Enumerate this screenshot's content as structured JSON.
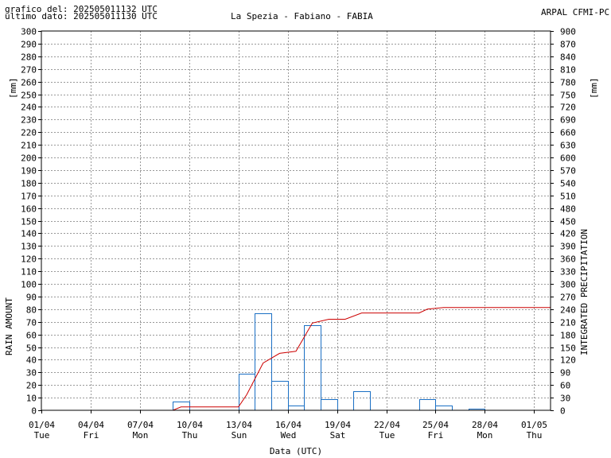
{
  "header": {
    "generated": "grafico del: 202505011132 UTC",
    "last_data": "ultimo dato: 202505011130 UTC",
    "station": "La Spezia - Fabiano - FABIA",
    "agency": "ARPAL CFMI-PC"
  },
  "chart_data": {
    "type": "bar",
    "title": "La Spezia - Fabiano - FABIA",
    "xlabel": "Data (UTC)",
    "ylabel_left": "RAIN AMOUNT",
    "ylabel_right": "INTEGRATED PRECIPITATION",
    "unit_left": "[mm]",
    "unit_right": "[mm]",
    "x_range": [
      "2025-04-01",
      "2025-05-02"
    ],
    "ylim_left": [
      0,
      300
    ],
    "ylim_right": [
      0,
      900
    ],
    "yticks_left": [
      0,
      10,
      20,
      30,
      40,
      50,
      60,
      70,
      80,
      90,
      100,
      110,
      120,
      130,
      140,
      150,
      160,
      170,
      180,
      190,
      200,
      210,
      220,
      230,
      240,
      250,
      260,
      270,
      280,
      290,
      300
    ],
    "yticks_right": [
      0,
      30,
      60,
      90,
      120,
      150,
      180,
      210,
      240,
      270,
      300,
      330,
      360,
      390,
      420,
      450,
      480,
      510,
      540,
      570,
      600,
      630,
      660,
      690,
      720,
      750,
      780,
      810,
      840,
      870,
      900
    ],
    "x_ticks": [
      {
        "date": "01/04",
        "day": "Tue",
        "offset": 0
      },
      {
        "date": "04/04",
        "day": "Fri",
        "offset": 3
      },
      {
        "date": "07/04",
        "day": "Mon",
        "offset": 6
      },
      {
        "date": "10/04",
        "day": "Thu",
        "offset": 9
      },
      {
        "date": "13/04",
        "day": "Sun",
        "offset": 12
      },
      {
        "date": "16/04",
        "day": "Wed",
        "offset": 15
      },
      {
        "date": "19/04",
        "day": "Sat",
        "offset": 18
      },
      {
        "date": "22/04",
        "day": "Tue",
        "offset": 21
      },
      {
        "date": "25/04",
        "day": "Fri",
        "offset": 24
      },
      {
        "date": "28/04",
        "day": "Mon",
        "offset": 27
      },
      {
        "date": "01/05",
        "day": "Thu",
        "offset": 30
      }
    ],
    "grid": true,
    "series": [
      {
        "kind": "bars",
        "color": "#1a6fc4",
        "values": [
          {
            "start": "2025-04-09",
            "value": 7
          },
          {
            "start": "2025-04-13",
            "value": 29
          },
          {
            "start": "2025-04-14",
            "value": 77
          },
          {
            "start": "2025-04-15",
            "value": 23
          },
          {
            "start": "2025-04-16",
            "value": 4
          },
          {
            "start": "2025-04-17",
            "value": 67
          },
          {
            "start": "2025-04-18",
            "value": 9
          },
          {
            "start": "2025-04-20",
            "value": 15
          },
          {
            "start": "2025-04-24",
            "value": 9
          },
          {
            "start": "2025-04-25",
            "value": 4
          },
          {
            "start": "2025-04-27",
            "value": 1
          }
        ]
      },
      {
        "kind": "line",
        "color": "#cc0000",
        "points": [
          {
            "x": "2025-04-01T00:00",
            "y": 0
          },
          {
            "x": "2025-04-09T00:00",
            "y": 0
          },
          {
            "x": "2025-04-09T12:00",
            "y": 8
          },
          {
            "x": "2025-04-13T00:00",
            "y": 8
          },
          {
            "x": "2025-04-13T12:00",
            "y": 37
          },
          {
            "x": "2025-04-14T12:00",
            "y": 112
          },
          {
            "x": "2025-04-15T12:00",
            "y": 135
          },
          {
            "x": "2025-04-16T12:00",
            "y": 140
          },
          {
            "x": "2025-04-17T12:00",
            "y": 207
          },
          {
            "x": "2025-04-18T12:00",
            "y": 216
          },
          {
            "x": "2025-04-19T12:00",
            "y": 216
          },
          {
            "x": "2025-04-20T12:00",
            "y": 231
          },
          {
            "x": "2025-04-24T00:00",
            "y": 231
          },
          {
            "x": "2025-04-24T12:00",
            "y": 240
          },
          {
            "x": "2025-04-25T12:00",
            "y": 244
          },
          {
            "x": "2025-05-02T00:00",
            "y": 244
          }
        ]
      }
    ]
  }
}
